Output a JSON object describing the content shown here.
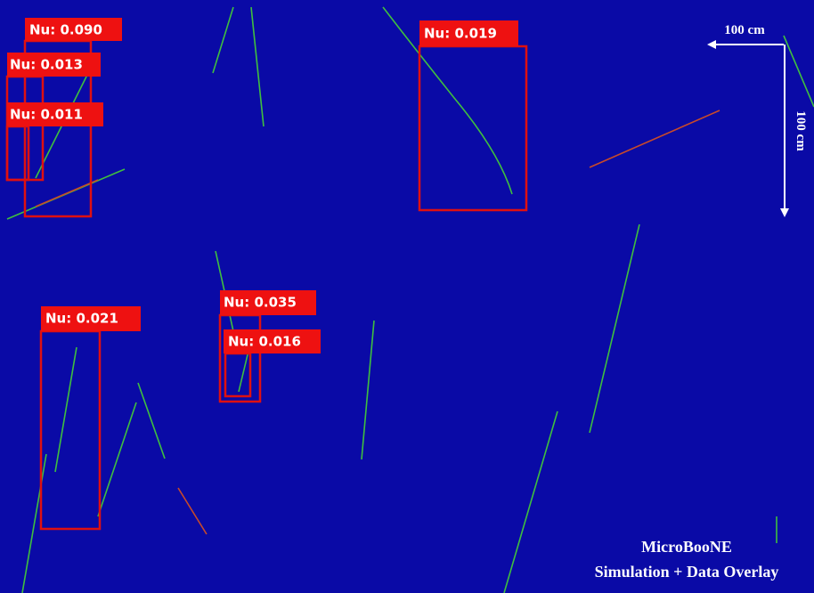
{
  "detections": [
    {
      "label": "Nu: 0.090"
    },
    {
      "label": "Nu: 0.013"
    },
    {
      "label": "Nu: 0.011"
    },
    {
      "label": "Nu: 0.019"
    },
    {
      "label": "Nu: 0.035"
    },
    {
      "label": "Nu: 0.016"
    },
    {
      "label": "Nu: 0.021"
    }
  ],
  "scale": {
    "horizontal": "100 cm",
    "vertical": "100 cm"
  },
  "watermark": {
    "experiment": "MicroBooNE",
    "subtitle": "Simulation + Data Overlay"
  }
}
